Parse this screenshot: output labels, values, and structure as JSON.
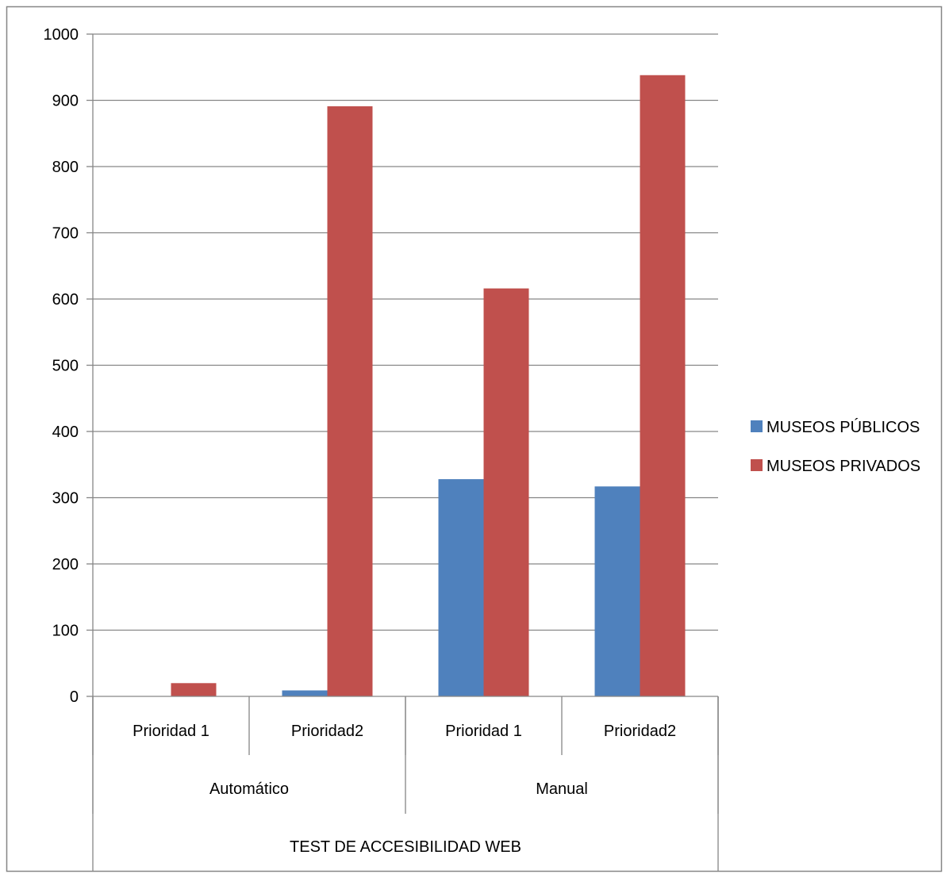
{
  "chart_data": {
    "type": "bar",
    "categories": [
      "Prioridad 1",
      "Prioridad2",
      "Prioridad 1",
      "Prioridad2"
    ],
    "groups": [
      "Automático",
      "Manual"
    ],
    "group_spans": [
      2,
      2
    ],
    "supergroup": "TEST DE ACCESIBILIDAD WEB",
    "series": [
      {
        "name": "MUSEOS PÚBLICOS",
        "color": "#4f81bd",
        "values": [
          0,
          9,
          328,
          317
        ]
      },
      {
        "name": "MUSEOS PRIVADOS",
        "color": "#c0504d",
        "values": [
          20,
          891,
          616,
          938
        ]
      }
    ],
    "ylim": [
      0,
      1000
    ],
    "yticks": [
      0,
      100,
      200,
      300,
      400,
      500,
      600,
      700,
      800,
      900,
      1000
    ],
    "grid": true,
    "legend": "right",
    "title": "",
    "xlabel": "",
    "ylabel": ""
  }
}
